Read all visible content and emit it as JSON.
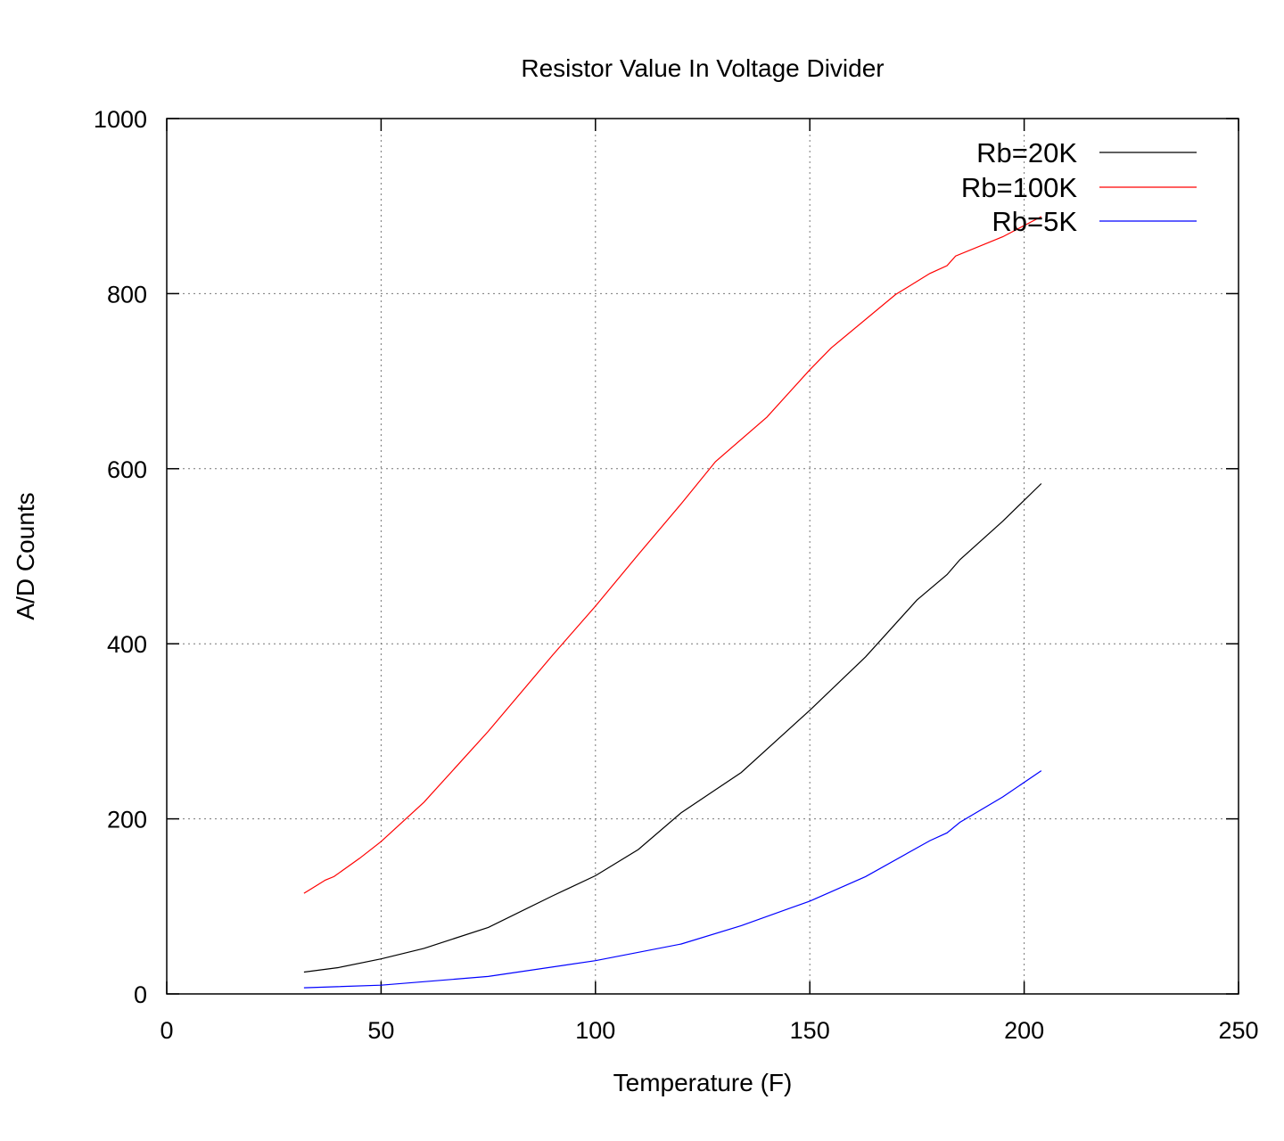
{
  "chart_data": {
    "type": "line",
    "title": "Resistor Value In Voltage Divider",
    "xlabel": "Temperature (F)",
    "ylabel": "A/D Counts",
    "xlim": [
      0,
      250
    ],
    "ylim": [
      0,
      1000
    ],
    "xticks": [
      "0",
      "50",
      "100",
      "150",
      "200",
      "250"
    ],
    "yticks": [
      "0",
      "200",
      "400",
      "600",
      "800",
      "1000"
    ],
    "grid": true,
    "legend": "top-right",
    "series": [
      {
        "name": "Rb=20K",
        "color": "#000000",
        "x": [
          32,
          40,
          50,
          60,
          75,
          90,
          100,
          110,
          120,
          134,
          150,
          163,
          175,
          182,
          185,
          195,
          204
        ],
        "y": [
          25,
          30,
          40,
          52,
          76,
          112,
          135,
          165,
          207,
          253,
          324,
          385,
          450,
          479,
          496,
          540,
          583
        ]
      },
      {
        "name": "Rb=100K",
        "color": "#ff0000",
        "x": [
          32,
          35,
          37,
          39,
          45,
          50,
          60,
          75,
          90,
          100,
          110,
          120,
          128,
          140,
          150,
          155,
          170,
          178,
          182,
          184,
          195,
          204
        ],
        "y": [
          115,
          124,
          130,
          134,
          155,
          174,
          219,
          300,
          387,
          443,
          502,
          560,
          608,
          659,
          713,
          738,
          799,
          823,
          832,
          843,
          865,
          888
        ]
      },
      {
        "name": "Rb=5K",
        "color": "#0000ff",
        "x": [
          32,
          50,
          75,
          100,
          120,
          134,
          150,
          163,
          178,
          182,
          185,
          195,
          204
        ],
        "y": [
          7,
          10,
          20,
          38,
          57,
          78,
          106,
          134,
          175,
          184,
          196,
          225,
          255
        ]
      }
    ]
  }
}
